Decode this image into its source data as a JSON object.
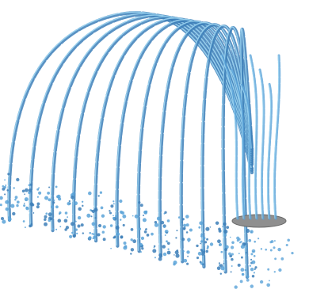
{
  "scene": {
    "subject": "fountain-water-arcs",
    "colors": {
      "background": "#ffffff",
      "water_dark": "#3d7fb8",
      "water_mid": "#5aa3d8",
      "water_light": "#9fd6f2",
      "nozzle_disk": "#8f8f8f",
      "nozzle_rim": "#6a6a6a"
    },
    "arc_count": 12,
    "droplets_per_arc": 26,
    "random_seed": 7
  }
}
